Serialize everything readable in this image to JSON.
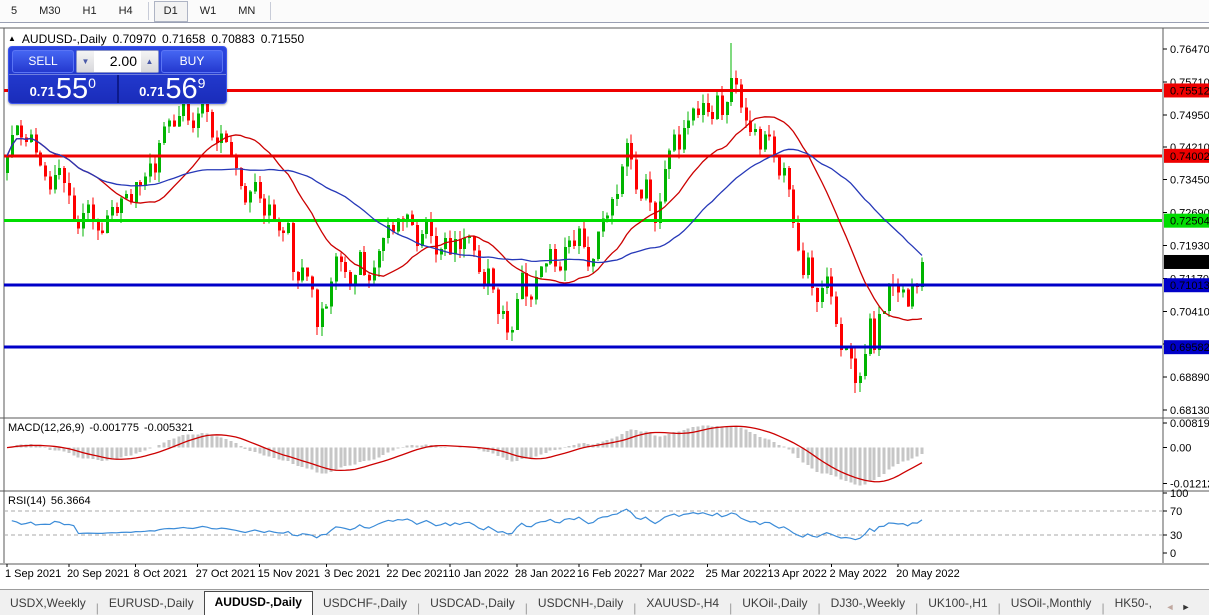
{
  "toolbar": {
    "timeframes": [
      "5",
      "M30",
      "H1",
      "H4",
      "D1",
      "W1",
      "MN"
    ],
    "active": "D1"
  },
  "chart_header": {
    "collapse_icon": "▲",
    "symbol": "AUDUSD-,Daily",
    "open": "0.70970",
    "high": "0.71658",
    "low": "0.70883",
    "close": "0.71550"
  },
  "trade_panel": {
    "sell_label": "SELL",
    "buy_label": "BUY",
    "volume": "2.00",
    "down_icon": "▼",
    "up_icon": "▲",
    "sell_price": {
      "small": "0.71",
      "big": "55",
      "sup": "0"
    },
    "buy_price": {
      "small": "0.71",
      "big": "56",
      "sup": "9"
    }
  },
  "chart_data": {
    "type": "candlestick",
    "title": "AUDUSD-,Daily",
    "price_range": {
      "min": 0.67969,
      "max": 0.76955
    },
    "first_open": 0.736,
    "closes": [
      0.74,
      0.7448,
      0.747,
      0.7442,
      0.7432,
      0.745,
      0.7408,
      0.7378,
      0.7352,
      0.7322,
      0.7356,
      0.7372,
      0.7338,
      0.7308,
      0.7252,
      0.7232,
      0.7268,
      0.7288,
      0.7248,
      0.7228,
      0.7222,
      0.7262,
      0.7282,
      0.7268,
      0.7302,
      0.7312,
      0.7292,
      0.734,
      0.733,
      0.7352,
      0.7382,
      0.7362,
      0.743,
      0.7468,
      0.7482,
      0.7468,
      0.7492,
      0.752,
      0.7482,
      0.7465,
      0.7498,
      0.7535,
      0.7502,
      0.7442,
      0.743,
      0.7452,
      0.7432,
      0.7402,
      0.7372,
      0.733,
      0.7292,
      0.7318,
      0.734,
      0.7302,
      0.7262,
      0.7288,
      0.7252,
      0.7228,
      0.7222,
      0.7245,
      0.7132,
      0.7112,
      0.7142,
      0.7122,
      0.7092,
      0.7005,
      0.7048,
      0.7052,
      0.711,
      0.7168,
      0.7155,
      0.7132,
      0.7102,
      0.7125,
      0.7178,
      0.7125,
      0.7112,
      0.7142,
      0.718,
      0.721,
      0.724,
      0.7225,
      0.7255,
      0.7248,
      0.7265,
      0.724,
      0.7192,
      0.722,
      0.7248,
      0.7215,
      0.7172,
      0.7185,
      0.721,
      0.7172,
      0.7208,
      0.7185,
      0.721,
      0.7215,
      0.7182,
      0.7132,
      0.7102,
      0.714,
      0.7092,
      0.7035,
      0.7042,
      0.6992,
      0.6998,
      0.707,
      0.713,
      0.7075,
      0.7068,
      0.712,
      0.7145,
      0.7152,
      0.7185,
      0.7145,
      0.7135,
      0.719,
      0.7205,
      0.7192,
      0.7232,
      0.719,
      0.7145,
      0.7162,
      0.7225,
      0.7255,
      0.7262,
      0.73,
      0.7312,
      0.7375,
      0.743,
      0.7392,
      0.7322,
      0.7302,
      0.7345,
      0.7292,
      0.7245,
      0.7295,
      0.737,
      0.7412,
      0.745,
      0.7415,
      0.7465,
      0.7482,
      0.751,
      0.7495,
      0.7522,
      0.7502,
      0.7485,
      0.754,
      0.7495,
      0.7525,
      0.758,
      0.7565,
      0.7512,
      0.7482,
      0.7455,
      0.7462,
      0.7415,
      0.745,
      0.7445,
      0.74,
      0.7355,
      0.7372,
      0.7322,
      0.7245,
      0.7182,
      0.7125,
      0.7165,
      0.7095,
      0.7062,
      0.7095,
      0.7122,
      0.7075,
      0.7012,
      0.6952,
      0.6958,
      0.6932,
      0.6875,
      0.6892,
      0.6942,
      0.7025,
      0.6952,
      0.7035,
      0.7042,
      0.7105,
      0.71,
      0.7085,
      0.7092,
      0.7052,
      0.7102,
      0.7097,
      0.7155
    ],
    "spike": {
      "index": 152,
      "high": 0.7661
    },
    "last_candle": {
      "open": 0.7097,
      "high": 0.71658,
      "low": 0.70883,
      "close": 0.7155
    },
    "candle_colors": {
      "bull": "#00b400",
      "bear": "#fe0000"
    },
    "moving_averages": [
      {
        "period": 20,
        "color": "#cc0000"
      },
      {
        "period": 40,
        "color": "#2638b8"
      }
    ],
    "levels": [
      {
        "price": 0.75512,
        "color": "#ee0000"
      },
      {
        "price": 0.74002,
        "color": "#ee0000"
      },
      {
        "price": 0.72504,
        "color": "#00dd00"
      },
      {
        "price": 0.71013,
        "color": "#0000c8"
      },
      {
        "price": 0.69582,
        "color": "#0000c8"
      }
    ],
    "current_price": {
      "value": "0.71550",
      "price": 0.7155,
      "badge_color": "#000000"
    },
    "price_axis_ticks": [
      "0.76470",
      "0.75710",
      "0.74950",
      "0.74210",
      "0.73450",
      "0.72690",
      "0.71930",
      "0.71170",
      "0.70410",
      "0.69650",
      "0.68890",
      "0.68130"
    ],
    "x_labels": [
      {
        "label": "1 Sep 2021",
        "index": 0
      },
      {
        "label": "20 Sep 2021",
        "index": 13
      },
      {
        "label": "8 Oct 2021",
        "index": 27
      },
      {
        "label": "27 Oct 2021",
        "index": 40
      },
      {
        "label": "15 Nov 2021",
        "index": 53
      },
      {
        "label": "3 Dec 2021",
        "index": 67
      },
      {
        "label": "22 Dec 2021",
        "index": 80
      },
      {
        "label": "10 Jan 2022",
        "index": 93
      },
      {
        "label": "28 Jan 2022",
        "index": 107
      },
      {
        "label": "16 Feb 2022",
        "index": 120
      },
      {
        "label": "7 Mar 2022",
        "index": 133
      },
      {
        "label": "25 Mar 2022",
        "index": 147
      },
      {
        "label": "13 Apr 2022",
        "index": 160
      },
      {
        "label": "2 May 2022",
        "index": 173
      },
      {
        "label": "20 May 2022",
        "index": 187
      }
    ],
    "indicators": {
      "macd": {
        "label": "MACD(12,26,9)",
        "values": [
          "-0.001775",
          "-0.005321"
        ],
        "fast": 12,
        "slow": 26,
        "signal": 9,
        "axis_labels": [
          "0.008197",
          "0.00",
          "-0.012121"
        ],
        "range": {
          "max": 0.0096,
          "min": -0.01422
        },
        "histogram_color": "#c6c6c6",
        "signal_color": "#cc0000"
      },
      "rsi": {
        "label": "RSI(14)",
        "value": "56.3664",
        "period": 14,
        "levels": [
          70,
          30
        ],
        "axis_labels": [
          "100",
          "70",
          "30",
          "0"
        ],
        "color": "#3c8cd8"
      }
    }
  },
  "bottom_tabs": {
    "tabs": [
      "USDX,Weekly",
      "EURUSD-,Daily",
      "AUDUSD-,Daily",
      "USDCHF-,Daily",
      "USDCAD-,Daily",
      "USDCNH-,Daily",
      "XAUUSD-,H4",
      "UKOil-,Daily",
      "DJ30-,Weekly",
      "UK100-,H1",
      "USOil-,Monthly",
      "HK50-,"
    ],
    "active_index": 2,
    "scroll_left_icon": "◄",
    "scroll_right_icon": "►"
  }
}
